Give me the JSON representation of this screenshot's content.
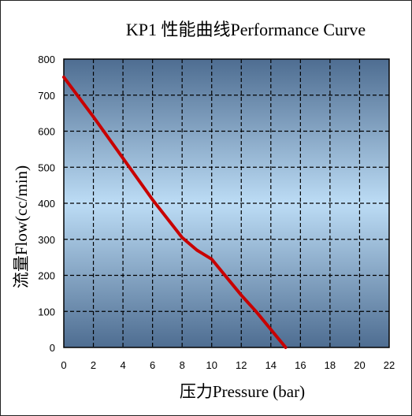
{
  "chart_data": {
    "type": "line",
    "title": "KP1 性能曲线Performance Curve",
    "xlabel": "压力Pressure (bar)",
    "ylabel": "流量Flow(cc/min)",
    "xlim": [
      0,
      22
    ],
    "ylim": [
      0,
      800
    ],
    "xticks": [
      0,
      2,
      4,
      6,
      8,
      10,
      12,
      14,
      16,
      18,
      20,
      22
    ],
    "yticks": [
      0,
      100,
      200,
      300,
      400,
      500,
      600,
      700,
      800
    ],
    "grid": true,
    "legend": "none",
    "series": [
      {
        "color": "#c80000",
        "x": [
          0,
          2,
          4,
          6,
          8,
          9,
          10,
          11,
          12,
          13,
          14,
          15
        ],
        "y": [
          750,
          640,
          525,
          410,
          305,
          270,
          245,
          195,
          145,
          100,
          50,
          0
        ]
      }
    ],
    "colors": {
      "plot_top": "#4e6d91",
      "plot_middle": "#bcdcf5",
      "plot_bottom": "#4e6d91",
      "grid": "#000000",
      "line": "#c80000"
    }
  }
}
